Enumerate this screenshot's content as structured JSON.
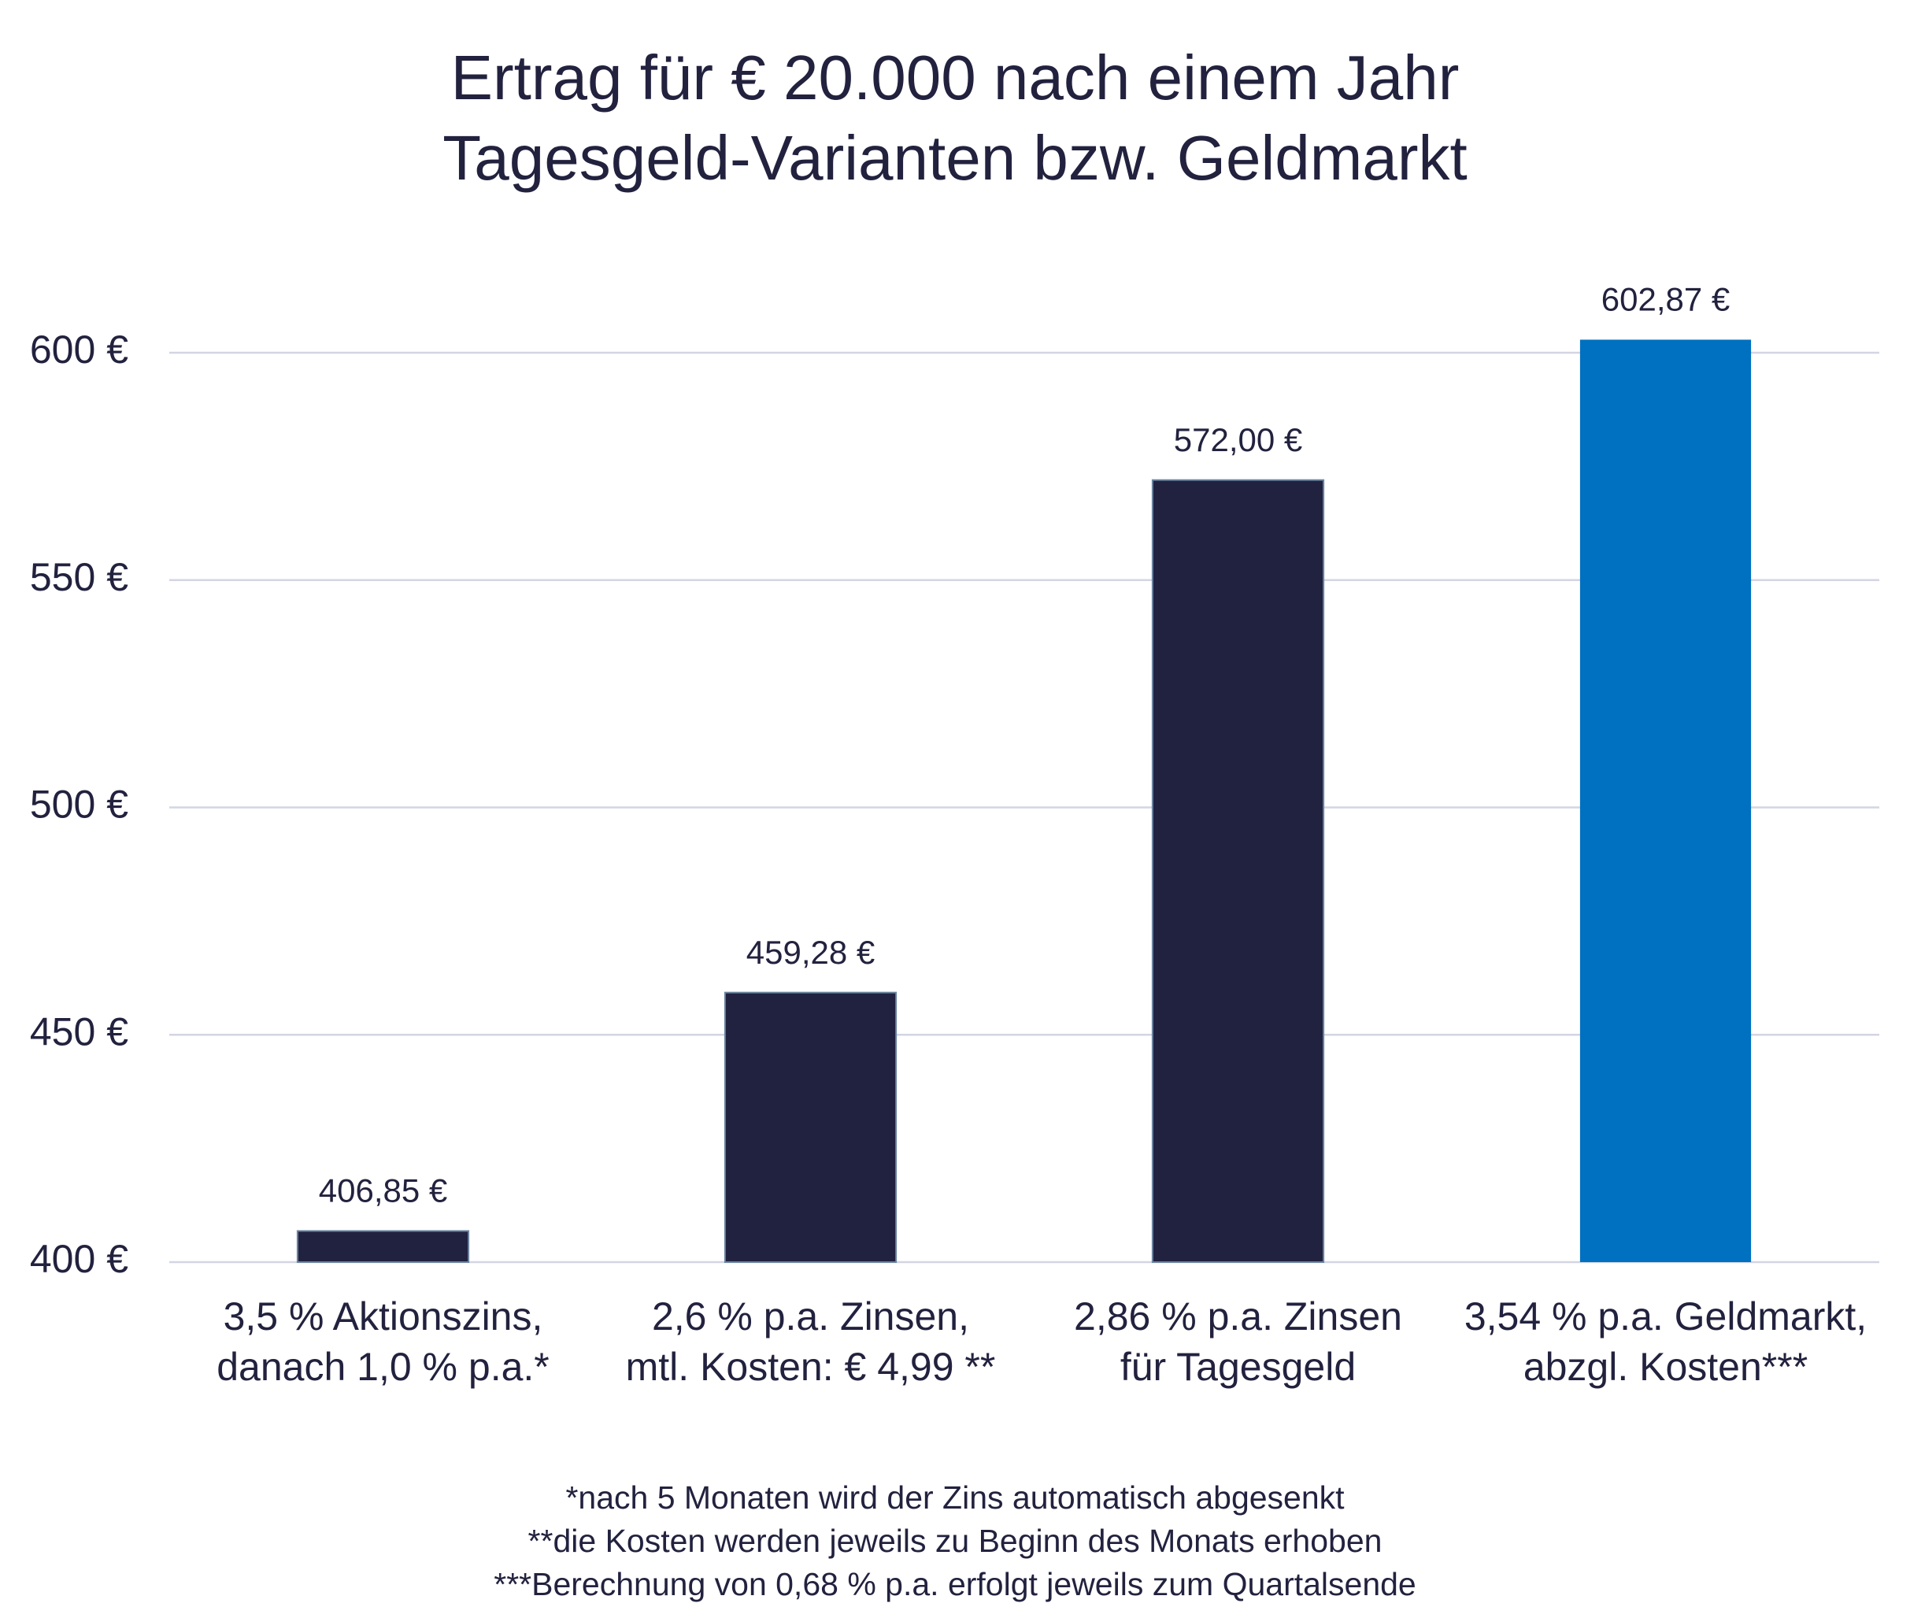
{
  "chart_data": {
    "type": "bar",
    "title": "Ertrag für € 20.000 nach einem Jahr\nTagesgeld-Varianten bzw. Geldmarkt",
    "categories": [
      "3,5 % Aktionszins,\ndanach 1,0 % p.a.*",
      "2,6 % p.a. Zinsen,\nmtl. Kosten: € 4,99 **",
      "2,86 % p.a. Zinsen\nfür Tagesgeld",
      "3,54 % p.a. Geldmarkt,\nabzgl. Kosten***"
    ],
    "values": [
      406.85,
      459.28,
      572.0,
      602.87
    ],
    "value_labels": [
      "406,85 €",
      "459,28 €",
      "572,00 €",
      "602,87 €"
    ],
    "colors": [
      "#212240",
      "#212240",
      "#212240",
      "#0070c0"
    ],
    "ylim": [
      400,
      600
    ],
    "yticks": [
      {
        "value": 400,
        "label": "400 €"
      },
      {
        "value": 450,
        "label": "450 €"
      },
      {
        "value": 500,
        "label": "500 €"
      },
      {
        "value": 550,
        "label": "550 €"
      },
      {
        "value": 600,
        "label": "600 €"
      }
    ],
    "grid": true,
    "footnotes": [
      "*nach 5 Monaten wird der Zins automatisch abgesenkt",
      "**die Kosten werden jeweils zu Beginn des Monats erhoben",
      "***Berechnung von 0,68 % p.a. erfolgt jeweils zum Quartalsende"
    ]
  }
}
